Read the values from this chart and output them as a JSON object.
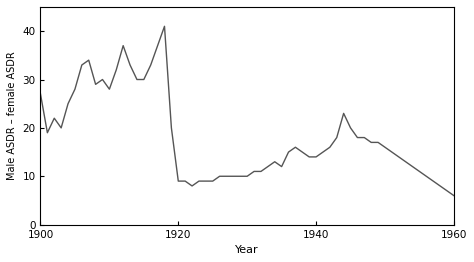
{
  "years": [
    1900,
    1901,
    1902,
    1903,
    1904,
    1905,
    1906,
    1907,
    1908,
    1909,
    1910,
    1911,
    1912,
    1913,
    1914,
    1915,
    1916,
    1917,
    1918,
    1919,
    1920,
    1921,
    1922,
    1923,
    1924,
    1925,
    1926,
    1927,
    1928,
    1929,
    1930,
    1931,
    1932,
    1933,
    1934,
    1935,
    1936,
    1937,
    1938,
    1939,
    1940,
    1941,
    1942,
    1943,
    1944,
    1945,
    1946,
    1947,
    1948,
    1949,
    1950,
    1951,
    1952,
    1953,
    1954,
    1955,
    1956,
    1957,
    1958,
    1959,
    1960
  ],
  "values": [
    27,
    19,
    22,
    20,
    25,
    28,
    33,
    34,
    29,
    30,
    28,
    32,
    37,
    33,
    30,
    30,
    33,
    37,
    41,
    20,
    9,
    9,
    8,
    9,
    9,
    9,
    10,
    10,
    10,
    10,
    10,
    11,
    11,
    12,
    13,
    12,
    15,
    16,
    15,
    14,
    14,
    15,
    16,
    18,
    23,
    20,
    18,
    18,
    17,
    17,
    16,
    15,
    14,
    13,
    12,
    11,
    10,
    9,
    8,
    7,
    6
  ],
  "xlabel": "Year",
  "ylabel": "Male ASDR – female ASDR",
  "xlim": [
    1900,
    1960
  ],
  "ylim": [
    0,
    45
  ],
  "yticks": [
    0,
    10,
    20,
    30,
    40
  ],
  "xticks": [
    1900,
    1920,
    1940,
    1960
  ],
  "line_color": "#555555",
  "line_width": 1.0,
  "background_color": "#ffffff"
}
